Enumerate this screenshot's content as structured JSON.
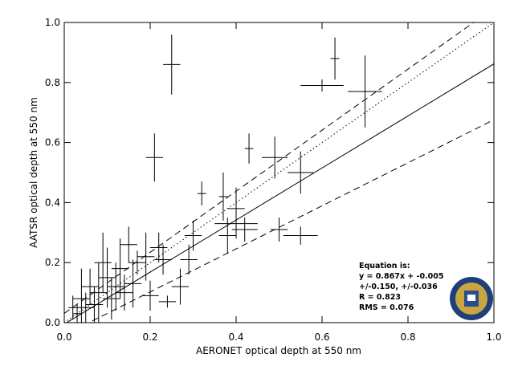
{
  "chart_data": {
    "type": "scatter",
    "xlabel": "AERONET optical depth at 550 nm",
    "ylabel": "AATSR optical depth at 550 nm",
    "xlim": [
      0,
      1
    ],
    "ylim": [
      0,
      1
    ],
    "xticks": [
      {
        "value": 0,
        "label": "0.0"
      },
      {
        "value": 0.2,
        "label": "0.2"
      },
      {
        "value": 0.4,
        "label": "0.4"
      },
      {
        "value": 0.6,
        "label": "0.6"
      },
      {
        "value": 0.8,
        "label": "0.8"
      },
      {
        "value": 1,
        "label": "1.0"
      }
    ],
    "yticks": [
      {
        "value": 0,
        "label": "0.0"
      },
      {
        "value": 0.2,
        "label": "0.2"
      },
      {
        "value": 0.4,
        "label": "0.4"
      },
      {
        "value": 0.6,
        "label": "0.6"
      },
      {
        "value": 0.8,
        "label": "0.8"
      },
      {
        "value": 1,
        "label": "1.0"
      }
    ],
    "series": [
      {
        "color": "#000000",
        "x": [
          0.25,
          0.63,
          0.6,
          0.7,
          0.21,
          0.49,
          0.43,
          0.55,
          0.55,
          0.5,
          0.4,
          0.38,
          0.42,
          0.4,
          0.37,
          0.32,
          0.3,
          0.29,
          0.24,
          0.23,
          0.22,
          0.19,
          0.17,
          0.15,
          0.13,
          0.12,
          0.1,
          0.08,
          0.07,
          0.05,
          0.04,
          0.03,
          0.06,
          0.09,
          0.11,
          0.14,
          0.02,
          0.16,
          0.2,
          0.27
        ],
        "y": [
          0.86,
          0.88,
          0.79,
          0.77,
          0.55,
          0.55,
          0.58,
          0.5,
          0.29,
          0.31,
          0.33,
          0.29,
          0.31,
          0.38,
          0.42,
          0.43,
          0.29,
          0.21,
          0.07,
          0.21,
          0.25,
          0.22,
          0.2,
          0.26,
          0.18,
          0.12,
          0.15,
          0.1,
          0.06,
          0.05,
          0.08,
          0.03,
          0.12,
          0.2,
          0.08,
          0.1,
          0.05,
          0.13,
          0.09,
          0.12
        ],
        "xerr": [
          0.02,
          0.01,
          0.05,
          0.04,
          0.02,
          0.03,
          0.01,
          0.03,
          0.04,
          0.02,
          0.05,
          0.02,
          0.03,
          0.02,
          0.01,
          0.01,
          0.02,
          0.02,
          0.02,
          0.02,
          0.02,
          0.02,
          0.02,
          0.02,
          0.02,
          0.02,
          0.02,
          0.02,
          0.02,
          0.02,
          0.02,
          0.01,
          0.02,
          0.02,
          0.02,
          0.02,
          0.01,
          0.02,
          0.02,
          0.02
        ],
        "yerr": [
          0.1,
          0.07,
          0.02,
          0.12,
          0.08,
          0.07,
          0.05,
          0.07,
          0.03,
          0.04,
          0.05,
          0.06,
          0.04,
          0.07,
          0.08,
          0.04,
          0.05,
          0.05,
          0.02,
          0.05,
          0.05,
          0.08,
          0.04,
          0.06,
          0.1,
          0.08,
          0.1,
          0.1,
          0.06,
          0.05,
          0.1,
          0.03,
          0.06,
          0.1,
          0.07,
          0.06,
          0.04,
          0.08,
          0.05,
          0.06
        ]
      }
    ],
    "lines": [
      {
        "slope": 0.867,
        "intercept": -0.005,
        "style": "solid"
      },
      {
        "slope": 1,
        "intercept": 0,
        "style": "dotted"
      },
      {
        "slope": 1.017,
        "intercept": 0.031,
        "style": "dashed"
      },
      {
        "slope": 0.717,
        "intercept": -0.041,
        "style": "dashed"
      }
    ],
    "annotations": [
      "Equation is:",
      "y = 0.867x + -0.005",
      "+/-0.150, +/-0.036",
      "R = 0.823",
      "RMS = 0.076"
    ]
  }
}
